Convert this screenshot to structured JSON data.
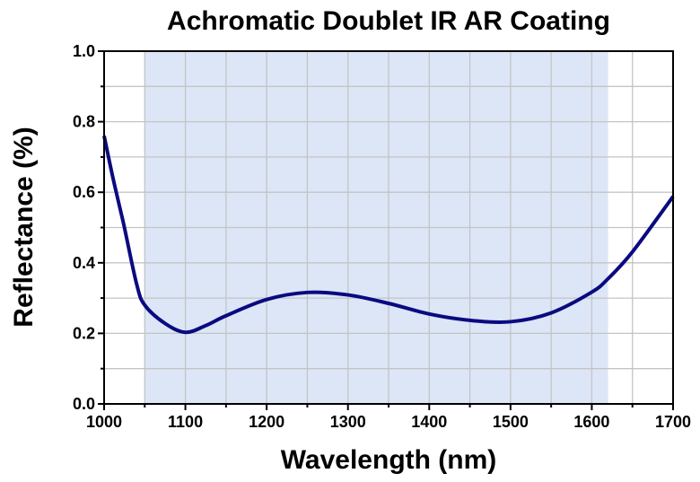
{
  "chart_data": {
    "type": "line",
    "title": "Achromatic Doublet IR AR Coating",
    "xlabel": "Wavelength (nm)",
    "ylabel": "Reflectance (%)",
    "xlim": [
      1000,
      1700
    ],
    "ylim": [
      0,
      1.0
    ],
    "xticks": [
      "1000",
      "1100",
      "1200",
      "1300",
      "1400",
      "1500",
      "1600",
      "1700"
    ],
    "yticks": [
      "0.0",
      "0.2",
      "0.4",
      "0.6",
      "0.8",
      "1.0"
    ],
    "grid": true,
    "shaded_region": {
      "x": [
        1050,
        1620
      ],
      "color": "#dce6f7"
    },
    "line_color": "#0a0a80",
    "series": [
      {
        "x": [
          1000,
          1010,
          1020,
          1025,
          1040,
          1050,
          1075,
          1100,
          1125,
          1150,
          1200,
          1250,
          1300,
          1350,
          1400,
          1450,
          1500,
          1550,
          1600,
          1620,
          1650,
          1700
        ],
        "y": [
          0.76,
          0.65,
          0.55,
          0.5,
          0.34,
          0.28,
          0.228,
          0.203,
          0.222,
          0.25,
          0.296,
          0.316,
          0.309,
          0.285,
          0.255,
          0.237,
          0.233,
          0.258,
          0.317,
          0.355,
          0.431,
          0.588
        ]
      }
    ]
  }
}
